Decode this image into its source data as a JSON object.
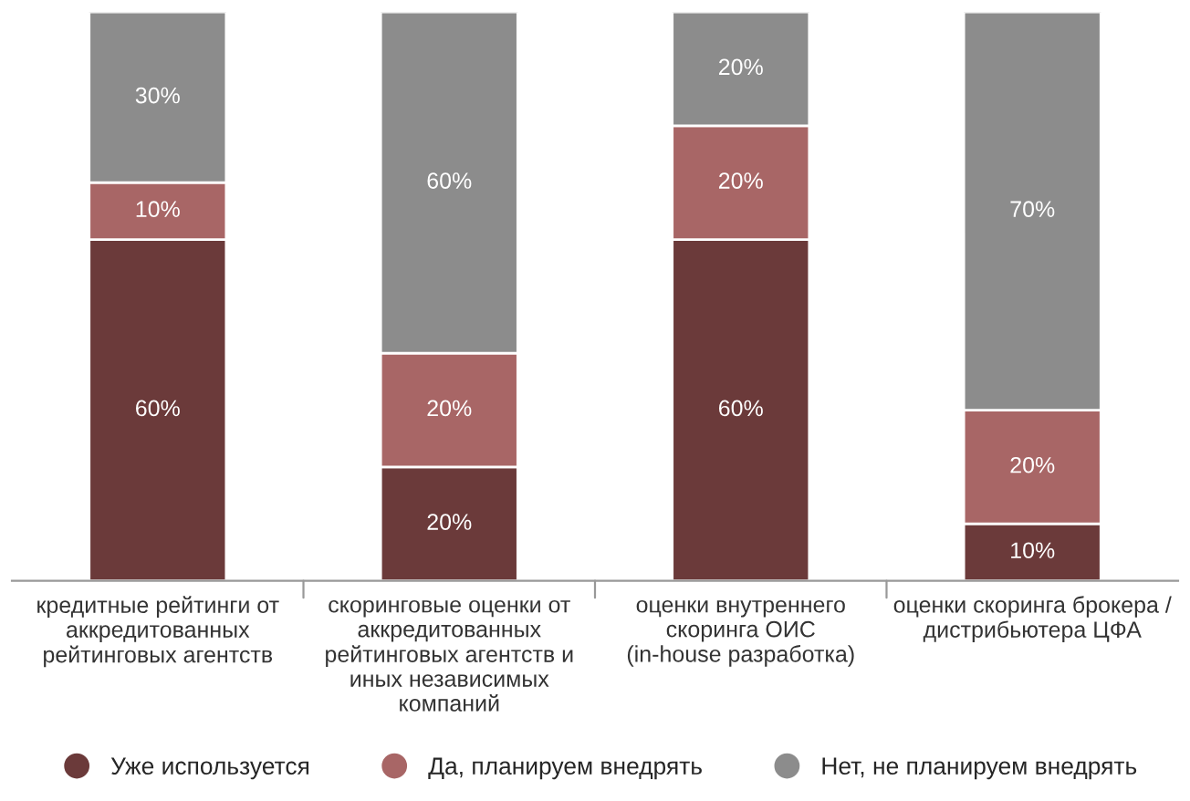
{
  "chart_data": {
    "type": "bar",
    "stacked": true,
    "legend": "bottom",
    "categories": [
      "кредитные рейтинги от\nаккредитованных\nрейтинговых агентств",
      "скоринговые оценки от\nаккредитованных\nрейтинговых агентств и\nиных независимых\nкомпаний",
      "оценки внутреннего\nскоринга ОИС\n(in-house разработка)",
      "оценки скоринга брокера /\nдистрибьютера ЦФА"
    ],
    "series": [
      {
        "name": "Уже используется",
        "color": "#6b3a3a",
        "values": [
          60,
          20,
          60,
          10
        ],
        "value_labels": [
          "60%",
          "20%",
          "60%",
          "10%"
        ]
      },
      {
        "name": "Да, планируем внедрять",
        "color": "#a86666",
        "values": [
          10,
          20,
          20,
          20
        ],
        "value_labels": [
          "10%",
          "20%",
          "20%",
          "20%"
        ]
      },
      {
        "name": "Нет, не планируем внедрять",
        "color": "#8c8c8c",
        "values": [
          30,
          60,
          20,
          70
        ],
        "value_labels": [
          "30%",
          "60%",
          "20%",
          "70%"
        ]
      }
    ]
  }
}
